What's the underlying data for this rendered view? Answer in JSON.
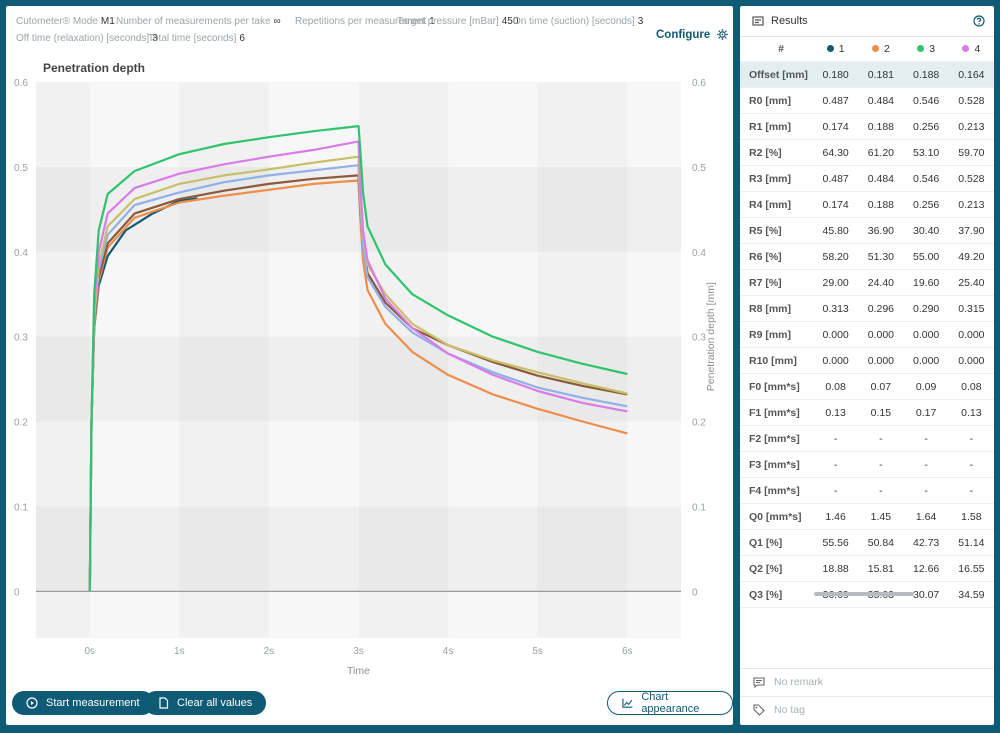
{
  "params": [
    {
      "label": "Cutometer® Mode",
      "value": "M1"
    },
    {
      "label": "Number of measurements per take",
      "value": "∞"
    },
    {
      "label": "Repetitions per measurement",
      "value": "1"
    },
    {
      "label": "Target pressure [mBar]",
      "value": "450"
    },
    {
      "label": "On time (suction) [seconds]",
      "value": "3"
    },
    {
      "label": "Off time (relaxation) [seconds]",
      "value": "3"
    },
    {
      "label": "Total time [seconds]",
      "value": "6"
    }
  ],
  "configure_label": "Configure",
  "buttons": {
    "start": "Start measurement",
    "clear": "Clear all values",
    "appearance": "Chart appearance"
  },
  "chart_data": {
    "type": "line",
    "title": "Penetration depth",
    "xlabel": "Time",
    "ylabel": "Penetration depth [mm]",
    "xlim": [
      -0.6,
      6.6
    ],
    "ylim": [
      -0.055,
      0.6
    ],
    "x_ticks": [
      "0s",
      "1s",
      "2s",
      "3s",
      "4s",
      "5s",
      "6s"
    ],
    "y_ticks": [
      "0",
      "0.1",
      "0.2",
      "0.3",
      "0.4",
      "0.5",
      "0.6"
    ],
    "x_tick_values": [
      0,
      1,
      2,
      3,
      4,
      5,
      6
    ],
    "y_tick_values": [
      0,
      0.1,
      0.2,
      0.3,
      0.4,
      0.5,
      0.6
    ],
    "series": [
      {
        "color": "#0f5a74",
        "values": [
          [
            0,
            0
          ],
          [
            0.02,
            0.2
          ],
          [
            0.05,
            0.31
          ],
          [
            0.1,
            0.36
          ],
          [
            0.2,
            0.395
          ],
          [
            0.4,
            0.425
          ],
          [
            0.7,
            0.445
          ],
          [
            1.0,
            0.46
          ],
          [
            1.2,
            0.463
          ]
        ]
      },
      {
        "color": "#ef8c4a",
        "values": [
          [
            0,
            0
          ],
          [
            0.02,
            0.2
          ],
          [
            0.05,
            0.31
          ],
          [
            0.1,
            0.365
          ],
          [
            0.2,
            0.405
          ],
          [
            0.5,
            0.44
          ],
          [
            1.0,
            0.458
          ],
          [
            1.5,
            0.466
          ],
          [
            2.0,
            0.473
          ],
          [
            2.5,
            0.48
          ],
          [
            3.0,
            0.484
          ],
          [
            3.02,
            0.44
          ],
          [
            3.05,
            0.39
          ],
          [
            3.1,
            0.355
          ],
          [
            3.3,
            0.315
          ],
          [
            3.6,
            0.282
          ],
          [
            4.0,
            0.255
          ],
          [
            4.5,
            0.232
          ],
          [
            5.0,
            0.215
          ],
          [
            5.5,
            0.2
          ],
          [
            6.0,
            0.186
          ]
        ]
      },
      {
        "color": "#8a5a3a",
        "values": [
          [
            0,
            0
          ],
          [
            0.02,
            0.2
          ],
          [
            0.05,
            0.315
          ],
          [
            0.1,
            0.37
          ],
          [
            0.2,
            0.41
          ],
          [
            0.5,
            0.445
          ],
          [
            1.0,
            0.462
          ],
          [
            1.5,
            0.472
          ],
          [
            2.0,
            0.48
          ],
          [
            2.5,
            0.486
          ],
          [
            3.0,
            0.49
          ],
          [
            3.02,
            0.45
          ],
          [
            3.05,
            0.41
          ],
          [
            3.1,
            0.375
          ],
          [
            3.3,
            0.34
          ],
          [
            3.6,
            0.31
          ],
          [
            4.0,
            0.29
          ],
          [
            4.5,
            0.27
          ],
          [
            5.0,
            0.254
          ],
          [
            5.5,
            0.242
          ],
          [
            6.0,
            0.232
          ]
        ]
      },
      {
        "color": "#8fb0e8",
        "values": [
          [
            0,
            0
          ],
          [
            0.02,
            0.2
          ],
          [
            0.05,
            0.32
          ],
          [
            0.1,
            0.378
          ],
          [
            0.2,
            0.42
          ],
          [
            0.5,
            0.455
          ],
          [
            1.0,
            0.47
          ],
          [
            1.5,
            0.482
          ],
          [
            2.0,
            0.49
          ],
          [
            2.5,
            0.496
          ],
          [
            3.0,
            0.502
          ],
          [
            3.02,
            0.455
          ],
          [
            3.05,
            0.405
          ],
          [
            3.1,
            0.37
          ],
          [
            3.3,
            0.335
          ],
          [
            3.6,
            0.305
          ],
          [
            4.0,
            0.28
          ],
          [
            4.5,
            0.258
          ],
          [
            5.0,
            0.24
          ],
          [
            5.5,
            0.228
          ],
          [
            6.0,
            0.218
          ]
        ]
      },
      {
        "color": "#c9bf6a",
        "values": [
          [
            0,
            0
          ],
          [
            0.02,
            0.2
          ],
          [
            0.05,
            0.325
          ],
          [
            0.1,
            0.385
          ],
          [
            0.2,
            0.43
          ],
          [
            0.5,
            0.462
          ],
          [
            1.0,
            0.48
          ],
          [
            1.5,
            0.49
          ],
          [
            2.0,
            0.497
          ],
          [
            2.5,
            0.505
          ],
          [
            3.0,
            0.512
          ],
          [
            3.02,
            0.465
          ],
          [
            3.05,
            0.42
          ],
          [
            3.1,
            0.385
          ],
          [
            3.3,
            0.35
          ],
          [
            3.6,
            0.315
          ],
          [
            4.0,
            0.29
          ],
          [
            4.5,
            0.272
          ],
          [
            5.0,
            0.258
          ],
          [
            5.5,
            0.245
          ],
          [
            6.0,
            0.233
          ]
        ]
      },
      {
        "color": "#d97ce8",
        "values": [
          [
            0,
            0
          ],
          [
            0.02,
            0.2
          ],
          [
            0.05,
            0.335
          ],
          [
            0.1,
            0.4
          ],
          [
            0.2,
            0.445
          ],
          [
            0.5,
            0.475
          ],
          [
            1.0,
            0.492
          ],
          [
            1.5,
            0.503
          ],
          [
            2.0,
            0.512
          ],
          [
            2.5,
            0.52
          ],
          [
            3.0,
            0.53
          ],
          [
            3.02,
            0.48
          ],
          [
            3.05,
            0.425
          ],
          [
            3.1,
            0.39
          ],
          [
            3.3,
            0.345
          ],
          [
            3.6,
            0.31
          ],
          [
            4.0,
            0.28
          ],
          [
            4.5,
            0.255
          ],
          [
            5.0,
            0.236
          ],
          [
            5.5,
            0.222
          ],
          [
            6.0,
            0.212
          ]
        ]
      },
      {
        "color": "#2ec46b",
        "values": [
          [
            0,
            0
          ],
          [
            0.02,
            0.2
          ],
          [
            0.05,
            0.35
          ],
          [
            0.1,
            0.425
          ],
          [
            0.2,
            0.468
          ],
          [
            0.5,
            0.495
          ],
          [
            1.0,
            0.515
          ],
          [
            1.5,
            0.527
          ],
          [
            2.0,
            0.535
          ],
          [
            2.5,
            0.542
          ],
          [
            3.0,
            0.548
          ],
          [
            3.02,
            0.52
          ],
          [
            3.05,
            0.47
          ],
          [
            3.1,
            0.43
          ],
          [
            3.3,
            0.385
          ],
          [
            3.6,
            0.35
          ],
          [
            4.0,
            0.325
          ],
          [
            4.5,
            0.3
          ],
          [
            5.0,
            0.282
          ],
          [
            5.5,
            0.268
          ],
          [
            6.0,
            0.256
          ]
        ]
      }
    ]
  },
  "results": {
    "title": "Results",
    "columns": [
      {
        "label": "1",
        "color": "#0f5a74"
      },
      {
        "label": "2",
        "color": "#ef8c4a"
      },
      {
        "label": "3",
        "color": "#2ec46b"
      },
      {
        "label": "4",
        "color": "#d97ce8"
      }
    ],
    "hash": "#",
    "rows": [
      {
        "label": "Offset [mm]",
        "values": [
          "0.180",
          "0.181",
          "0.188",
          "0.164"
        ]
      },
      {
        "label": "R0 [mm]",
        "values": [
          "0.487",
          "0.484",
          "0.546",
          "0.528"
        ]
      },
      {
        "label": "R1 [mm]",
        "values": [
          "0.174",
          "0.188",
          "0.256",
          "0.213"
        ]
      },
      {
        "label": "R2 [%]",
        "values": [
          "64.30",
          "61.20",
          "53.10",
          "59.70"
        ]
      },
      {
        "label": "R3 [mm]",
        "values": [
          "0.487",
          "0.484",
          "0.546",
          "0.528"
        ]
      },
      {
        "label": "R4 [mm]",
        "values": [
          "0.174",
          "0.188",
          "0.256",
          "0.213"
        ]
      },
      {
        "label": "R5 [%]",
        "values": [
          "45.80",
          "36.90",
          "30.40",
          "37.90"
        ]
      },
      {
        "label": "R6 [%]",
        "values": [
          "58.20",
          "51.30",
          "55.00",
          "49.20"
        ]
      },
      {
        "label": "R7 [%]",
        "values": [
          "29.00",
          "24.40",
          "19.60",
          "25.40"
        ]
      },
      {
        "label": "R8 [mm]",
        "values": [
          "0.313",
          "0.296",
          "0.290",
          "0.315"
        ]
      },
      {
        "label": "R9 [mm]",
        "values": [
          "0.000",
          "0.000",
          "0.000",
          "0.000"
        ]
      },
      {
        "label": "R10 [mm]",
        "values": [
          "0.000",
          "0.000",
          "0.000",
          "0.000"
        ]
      },
      {
        "label": "F0 [mm*s]",
        "values": [
          "0.08",
          "0.07",
          "0.09",
          "0.08"
        ]
      },
      {
        "label": "F1 [mm*s]",
        "values": [
          "0.13",
          "0.15",
          "0.17",
          "0.13"
        ]
      },
      {
        "label": "F2 [mm*s]",
        "values": [
          "-",
          "-",
          "-",
          "-"
        ]
      },
      {
        "label": "F3 [mm*s]",
        "values": [
          "-",
          "-",
          "-",
          "-"
        ]
      },
      {
        "label": "F4 [mm*s]",
        "values": [
          "-",
          "-",
          "-",
          "-"
        ]
      },
      {
        "label": "Q0 [mm*s]",
        "values": [
          "1.46",
          "1.45",
          "1.64",
          "1.58"
        ]
      },
      {
        "label": "Q1 [%]",
        "values": [
          "55.56",
          "50.84",
          "42.73",
          "51.14"
        ]
      },
      {
        "label": "Q2 [%]",
        "values": [
          "18.88",
          "15.81",
          "12.66",
          "16.55"
        ]
      },
      {
        "label": "Q3 [%]",
        "values": [
          "36.69",
          "35.03",
          "30.07",
          "34.59"
        ]
      }
    ],
    "remark": "No remark",
    "tag": "No tag"
  }
}
